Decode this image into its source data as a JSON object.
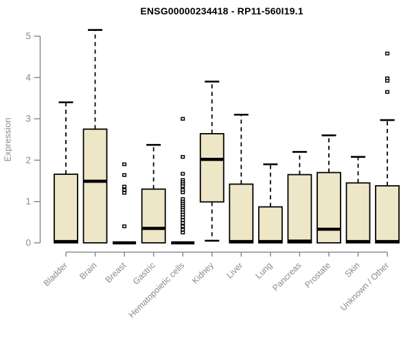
{
  "colors": {
    "box_fill": "#EEE7C7",
    "box_stroke": "#000000",
    "median": "#000000",
    "whisker": "#000000",
    "outlier_stroke": "#000000",
    "outlier_fill": "#FFFFFF",
    "axis": "#8A8A8A",
    "tick_label": "#8A8A8A",
    "title": "#000000"
  },
  "chart_data": {
    "type": "boxplot",
    "title": "ENSG00000234418 - RP11-560I19.1",
    "ylabel": "Expression",
    "xlabel": "",
    "ylim": [
      0,
      5
    ],
    "yticks": [
      0,
      1,
      2,
      3,
      4,
      5
    ],
    "grid": "off",
    "legend": "none",
    "categories": [
      "Bladder",
      "Brain",
      "Breast",
      "Gastric",
      "Hematopoietic cells",
      "Kidney",
      "Liver",
      "Lung",
      "Pancreas",
      "Prostate",
      "Skin",
      "Unknown / Other"
    ],
    "series": [
      {
        "name": "Bladder",
        "whisker_low": 0,
        "q1": 0,
        "median": 0.03,
        "q3": 1.66,
        "whisker_high": 3.4,
        "outliers": []
      },
      {
        "name": "Brain",
        "whisker_low": 0,
        "q1": 0,
        "median": 1.49,
        "q3": 2.75,
        "whisker_high": 5.15,
        "outliers": []
      },
      {
        "name": "Breast",
        "whisker_low": 0,
        "q1": 0,
        "median": 0,
        "q3": 0,
        "whisker_high": 0,
        "outliers": [
          1.9,
          1.64,
          1.36,
          1.28,
          1.21,
          0.4
        ]
      },
      {
        "name": "Gastric",
        "whisker_low": 0,
        "q1": 0,
        "median": 0.35,
        "q3": 1.3,
        "whisker_high": 2.37,
        "outliers": []
      },
      {
        "name": "Hematopoietic cells",
        "whisker_low": 0,
        "q1": 0,
        "median": 0,
        "q3": 0,
        "whisker_high": 0,
        "outliers": [
          3.0,
          2.08,
          1.67,
          1.52,
          1.47,
          1.42,
          1.37,
          1.28,
          1.22,
          1.06,
          1.0,
          0.95,
          0.9,
          0.85,
          0.8,
          0.74,
          0.68,
          0.62,
          0.55,
          0.48,
          0.4,
          0.32,
          0.25
        ]
      },
      {
        "name": "Kidney",
        "whisker_low": 0.05,
        "q1": 0.99,
        "median": 2.02,
        "q3": 2.64,
        "whisker_high": 3.9,
        "outliers": []
      },
      {
        "name": "Liver",
        "whisker_low": 0,
        "q1": 0,
        "median": 0.03,
        "q3": 1.42,
        "whisker_high": 3.1,
        "outliers": []
      },
      {
        "name": "Lung",
        "whisker_low": 0,
        "q1": 0,
        "median": 0.03,
        "q3": 0.87,
        "whisker_high": 1.9,
        "outliers": []
      },
      {
        "name": "Pancreas",
        "whisker_low": 0,
        "q1": 0,
        "median": 0.04,
        "q3": 1.65,
        "whisker_high": 2.2,
        "outliers": []
      },
      {
        "name": "Prostate",
        "whisker_low": 0,
        "q1": 0,
        "median": 0.33,
        "q3": 1.7,
        "whisker_high": 2.6,
        "outliers": []
      },
      {
        "name": "Skin",
        "whisker_low": 0,
        "q1": 0,
        "median": 0.03,
        "q3": 1.45,
        "whisker_high": 2.08,
        "outliers": []
      },
      {
        "name": "Unknown / Other",
        "whisker_low": 0,
        "q1": 0,
        "median": 0.03,
        "q3": 1.38,
        "whisker_high": 2.97,
        "outliers": [
          4.58,
          3.98,
          3.92,
          3.65
        ]
      }
    ]
  }
}
